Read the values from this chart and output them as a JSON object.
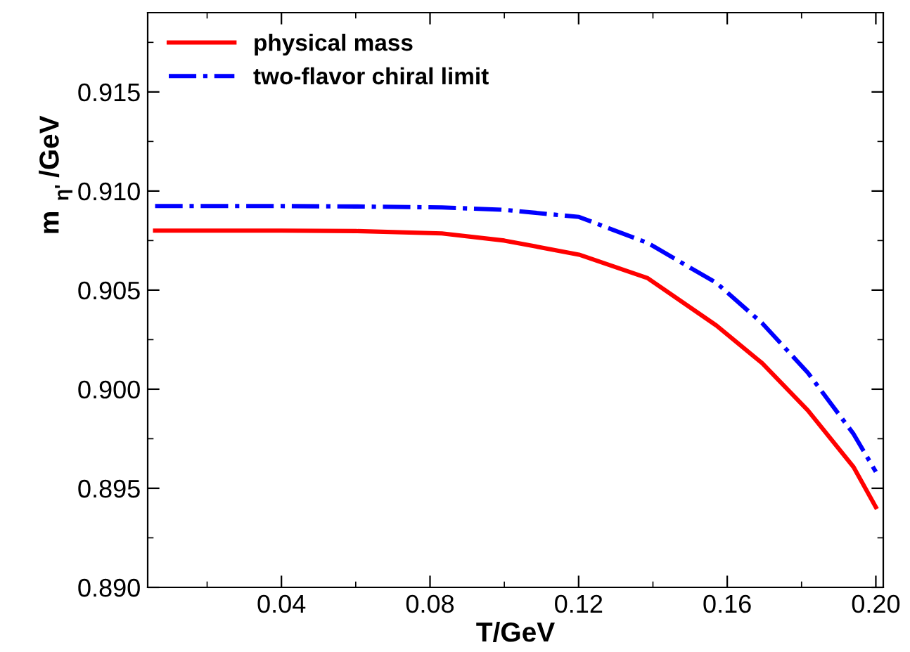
{
  "chart_data": {
    "type": "line",
    "xlabel": "T/GeV",
    "ylabel": "m$_{η'}$/GeV",
    "xlim": [
      0.004,
      0.202
    ],
    "xticks": [
      {
        "value": 0.04,
        "label": "0.04"
      },
      {
        "value": 0.08,
        "label": "0.08"
      },
      {
        "value": 0.12,
        "label": "0.12"
      },
      {
        "value": 0.16,
        "label": "0.16"
      },
      {
        "value": 0.2,
        "label": "0.20"
      }
    ],
    "ylim": [
      0.89,
      0.919
    ],
    "yticks": [
      {
        "value": 0.89,
        "label": "0.890"
      },
      {
        "value": 0.895,
        "label": "0.895"
      },
      {
        "value": 0.9,
        "label": "0.900"
      },
      {
        "value": 0.905,
        "label": "0.905"
      },
      {
        "value": 0.91,
        "label": "0.910"
      },
      {
        "value": 0.915,
        "label": "0.915"
      }
    ],
    "grid": false,
    "legend": "top left",
    "marker": "none",
    "series": [
      {
        "name": "physical mass",
        "color": "#ff0000",
        "line_style": "solid",
        "x": [
          0.006,
          0.04,
          0.06,
          0.0832,
          0.1,
          0.1201,
          0.1386,
          0.1571,
          0.1694,
          0.1817,
          0.194,
          0.2
        ],
        "values": [
          0.908,
          0.908,
          0.90798,
          0.90786,
          0.9075,
          0.90679,
          0.9056,
          0.90321,
          0.90131,
          0.89893,
          0.89607,
          0.89405
        ]
      },
      {
        "name": "two-flavor chiral limit",
        "color": "#0000ff",
        "line_style": "dashdot",
        "x": [
          0.006,
          0.04,
          0.06,
          0.0832,
          0.1,
          0.1201,
          0.1386,
          0.1571,
          0.1694,
          0.1817,
          0.194,
          0.2
        ],
        "values": [
          0.90924,
          0.90924,
          0.90922,
          0.90917,
          0.90905,
          0.90869,
          0.90738,
          0.90536,
          0.90333,
          0.90083,
          0.89774,
          0.89583
        ]
      }
    ]
  }
}
